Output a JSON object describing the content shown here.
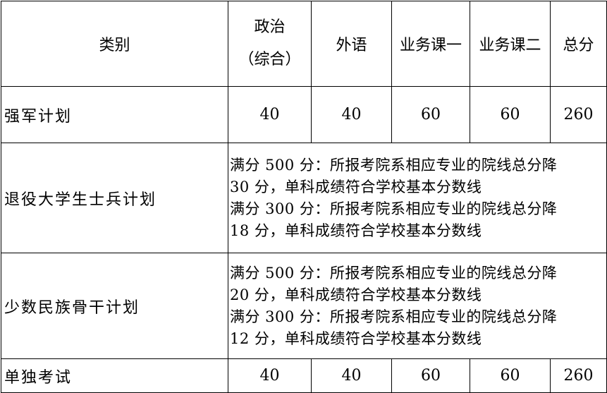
{
  "headers": {
    "category": "类别",
    "politics_line1": "政治",
    "politics_line2": "（综合）",
    "foreign": "外语",
    "course1": "业务课一",
    "course2": "业务课二",
    "total": "总分"
  },
  "rows": [
    {
      "name": "强军计划",
      "politics": "40",
      "foreign": "40",
      "course1": "60",
      "course2": "60",
      "total": "260"
    },
    {
      "name": "退役大学生士兵计划",
      "notes": [
        "满分 500 分：所报考院系相应专业的院线总分降",
        "30 分，单科成绩符合学校基本分数线",
        "满分 300 分：所报考院系相应专业的院线总分降",
        "18 分，单科成绩符合学校基本分数线"
      ]
    },
    {
      "name": "少数民族骨干计划",
      "notes": [
        "满分 500 分：所报考院系相应专业的院线总分降",
        "20 分，单科成绩符合学校基本分数线",
        "满分 300 分：所报考院系相应专业的院线总分降",
        "12 分，单科成绩符合学校基本分数线"
      ]
    },
    {
      "name": "单独考试",
      "politics": "40",
      "foreign": "40",
      "course1": "60",
      "course2": "60",
      "total": "260"
    }
  ]
}
